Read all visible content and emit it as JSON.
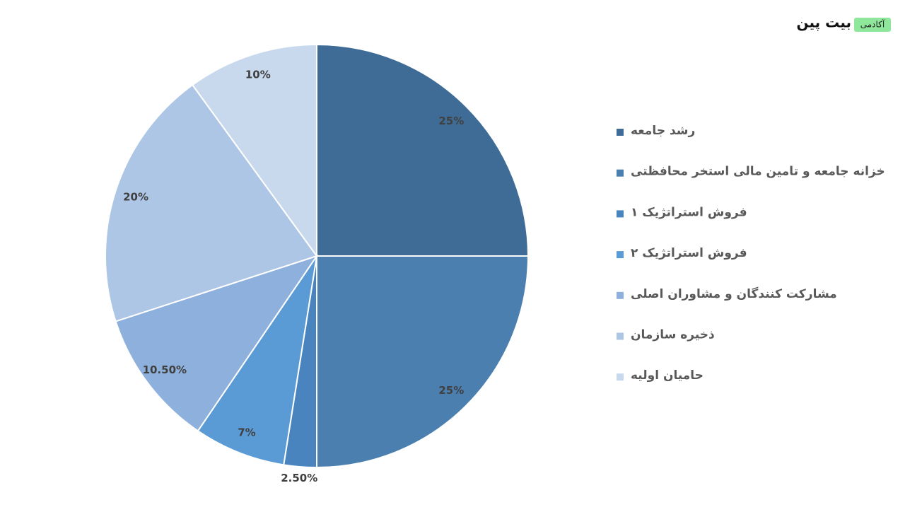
{
  "brand": {
    "name": "بیت پین",
    "badge": "آکادمی"
  },
  "chart_data": {
    "type": "pie",
    "categories": [
      "رشد جامعه",
      "خزانه جامعه و تامین مالی استخر محافظتی",
      "فروش استراتژیک ۱",
      "فروش استراتژیک ۲",
      "مشارکت کنندگان و مشاوران اصلی",
      "ذخیره سازمان",
      "حامیان اولیه"
    ],
    "values": [
      25,
      25,
      2.5,
      7,
      10.5,
      20,
      10
    ],
    "value_labels": [
      "25%",
      "25%",
      "2.50%",
      "7%",
      "10.50%",
      "20%",
      "10%"
    ],
    "colors": [
      "#3f6c96",
      "#4a7fb0",
      "#4a84bf",
      "#5b9bd5",
      "#8db0dc",
      "#adc6e6",
      "#c9d9ed"
    ],
    "legend": "right"
  }
}
